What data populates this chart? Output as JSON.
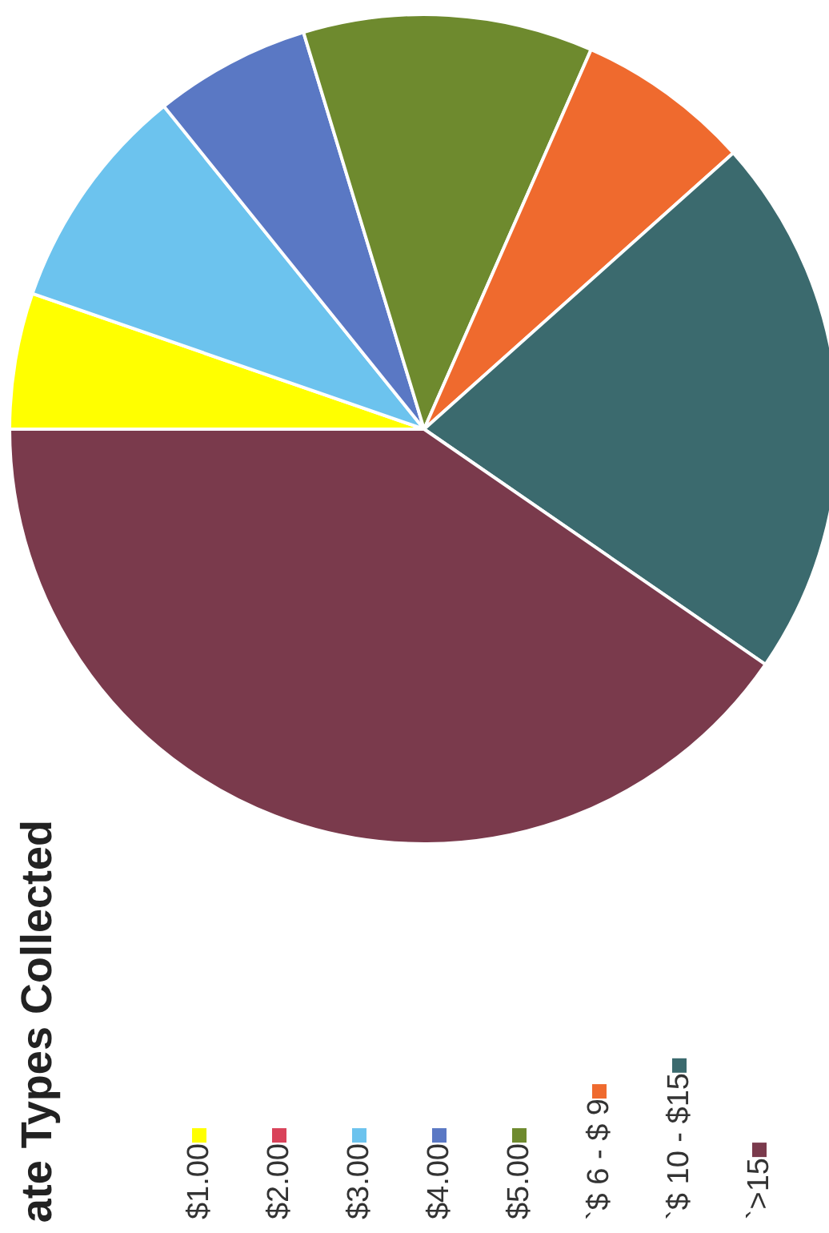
{
  "chart_data": {
    "type": "pie",
    "title": "ate Types Collected",
    "categories": [
      "$1.00",
      "$2.00",
      "$3.00",
      "$4.00",
      "$5.00",
      "`$ 6 - $ 9",
      "`$ 10 - $15",
      "`>15"
    ],
    "values": [
      5.3,
      0,
      8.9,
      6.1,
      11.3,
      6.8,
      21.2,
      40.4
    ],
    "colors": [
      "#ffff00",
      "#d9435a",
      "#6cc3ee",
      "#5a78c4",
      "#6e8a2e",
      "#ef6a2e",
      "#3b6a6e",
      "#7a3a4c"
    ],
    "legend": "bottom"
  }
}
